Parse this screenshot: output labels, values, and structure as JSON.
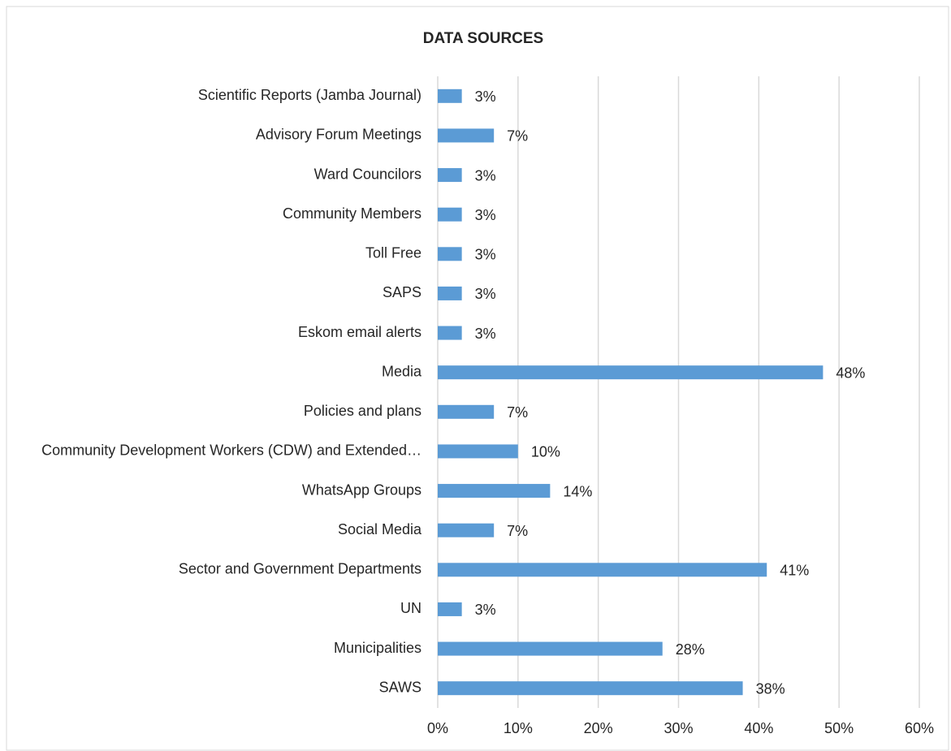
{
  "chart_data": {
    "type": "bar",
    "orientation": "horizontal",
    "title": "DATA SOURCES",
    "categories": [
      "Scientific Reports (Jamba Journal)",
      "Advisory Forum Meetings",
      "Ward Councilors",
      "Community Members",
      "Toll Free",
      "SAPS",
      "Eskom email alerts",
      "Media",
      "Policies and plans",
      "Community Development Workers (CDW) and Extended…",
      "WhatsApp Groups",
      "Social Media",
      "Sector and Government Departments",
      "UN",
      "Municipalities",
      "SAWS"
    ],
    "values": [
      3,
      7,
      3,
      3,
      3,
      3,
      3,
      48,
      7,
      10,
      14,
      7,
      41,
      3,
      28,
      38
    ],
    "value_labels": [
      "3%",
      "7%",
      "3%",
      "3%",
      "3%",
      "3%",
      "3%",
      "48%",
      "7%",
      "10%",
      "14%",
      "7%",
      "41%",
      "3%",
      "28%",
      "38%"
    ],
    "color": "#5b9bd5",
    "xlim": [
      0,
      60
    ],
    "xticks": [
      {
        "value": 0,
        "label": "0%"
      },
      {
        "value": 10,
        "label": "10%"
      },
      {
        "value": 20,
        "label": "20%"
      },
      {
        "value": 30,
        "label": "30%"
      },
      {
        "value": 40,
        "label": "40%"
      },
      {
        "value": 50,
        "label": "50%"
      },
      {
        "value": 60,
        "label": "60%"
      }
    ],
    "grid": true
  }
}
